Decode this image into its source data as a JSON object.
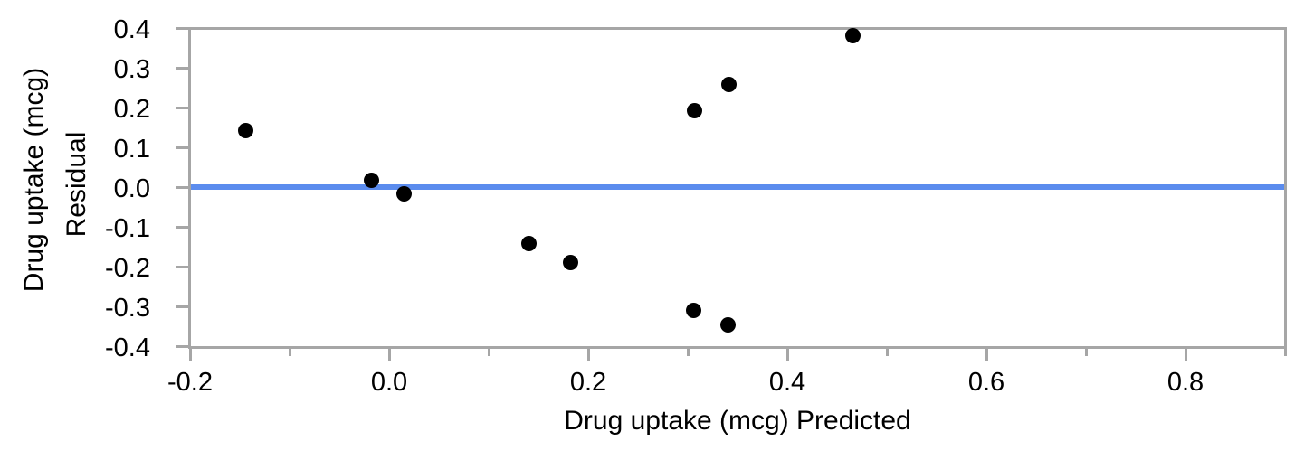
{
  "chart_data": {
    "type": "scatter",
    "xlabel": "Drug uptake (mcg) Predicted",
    "ylabel_line1": "Drug uptake (mcg)",
    "ylabel_line2": "Residual",
    "xlim": [
      -0.2,
      0.9
    ],
    "ylim": [
      -0.4,
      0.4
    ],
    "grid": false,
    "legend": false,
    "x_major_ticks": [
      {
        "value": -0.2,
        "label": "-0.2"
      },
      {
        "value": 0.0,
        "label": "0.0"
      },
      {
        "value": 0.2,
        "label": "0.2"
      },
      {
        "value": 0.4,
        "label": "0.4"
      },
      {
        "value": 0.6,
        "label": "0.6"
      },
      {
        "value": 0.8,
        "label": "0.8"
      }
    ],
    "x_minor_ticks": [
      -0.1,
      0.1,
      0.3,
      0.5,
      0.7,
      0.9
    ],
    "y_ticks": [
      {
        "value": 0.4,
        "label": "0.4"
      },
      {
        "value": 0.3,
        "label": "0.3"
      },
      {
        "value": 0.2,
        "label": "0.2"
      },
      {
        "value": 0.1,
        "label": "0.1"
      },
      {
        "value": 0.0,
        "label": "0.0"
      },
      {
        "value": -0.1,
        "label": "-0.1"
      },
      {
        "value": -0.2,
        "label": "-0.2"
      },
      {
        "value": -0.3,
        "label": "-0.3"
      },
      {
        "value": -0.4,
        "label": "-0.4"
      }
    ],
    "reference_line": {
      "y": 0.0
    },
    "points": [
      {
        "x": -0.144,
        "y": 0.141
      },
      {
        "x": -0.018,
        "y": 0.016
      },
      {
        "x": 0.015,
        "y": -0.018
      },
      {
        "x": 0.14,
        "y": -0.143
      },
      {
        "x": 0.182,
        "y": -0.189
      },
      {
        "x": 0.307,
        "y": 0.191
      },
      {
        "x": 0.306,
        "y": -0.31
      },
      {
        "x": 0.341,
        "y": 0.257
      },
      {
        "x": 0.34,
        "y": -0.346
      },
      {
        "x": 0.466,
        "y": 0.38
      }
    ],
    "colors": {
      "axis": "#a6a6a6",
      "marker": "#000000",
      "reference_line": "#5b8cee",
      "text": "#000000",
      "background": "#ffffff"
    }
  }
}
